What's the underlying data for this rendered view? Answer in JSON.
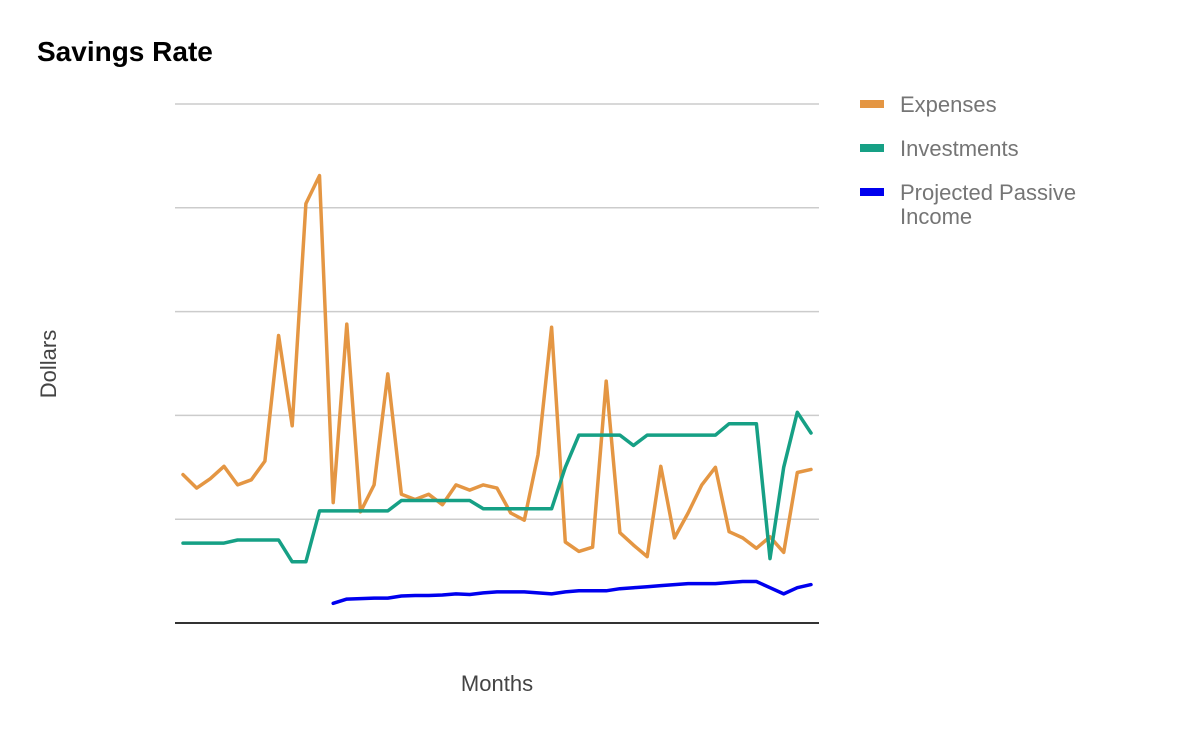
{
  "chart_data": {
    "type": "line",
    "title": "Savings Rate",
    "xlabel": "Months",
    "ylabel": "Dollars",
    "ylim": [
      0,
      5
    ],
    "grid": true,
    "legend_position": "right",
    "x": [
      0,
      1,
      2,
      3,
      4,
      5,
      6,
      7,
      8,
      9,
      10,
      11,
      12,
      13,
      14,
      15,
      16,
      17,
      18,
      19,
      20,
      21,
      22,
      23,
      24,
      25,
      26,
      27,
      28,
      29,
      30,
      31,
      32,
      33,
      34,
      35,
      36,
      37,
      38,
      39,
      40,
      41,
      42,
      43,
      44,
      45,
      46
    ],
    "series": [
      {
        "name": "Expenses",
        "color": "#e49643",
        "values": [
          1.43,
          1.3,
          1.39,
          1.51,
          1.33,
          1.38,
          1.56,
          2.77,
          1.9,
          4.04,
          4.31,
          1.16,
          2.88,
          1.07,
          1.33,
          2.4,
          1.24,
          1.19,
          1.24,
          1.14,
          1.33,
          1.28,
          1.33,
          1.3,
          1.06,
          0.99,
          1.62,
          2.85,
          0.78,
          0.69,
          0.73,
          2.33,
          0.87,
          0.75,
          0.64,
          1.51,
          0.82,
          1.06,
          1.33,
          1.5,
          0.88,
          0.82,
          0.72,
          0.83,
          0.68,
          1.45,
          1.48
        ]
      },
      {
        "name": "Investments",
        "color": "#16a085",
        "values": [
          0.77,
          0.77,
          0.77,
          0.77,
          0.8,
          0.8,
          0.8,
          0.8,
          0.59,
          0.59,
          1.08,
          1.08,
          1.08,
          1.08,
          1.08,
          1.08,
          1.18,
          1.18,
          1.18,
          1.18,
          1.18,
          1.18,
          1.1,
          1.1,
          1.1,
          1.1,
          1.1,
          1.1,
          1.5,
          1.81,
          1.81,
          1.81,
          1.81,
          1.71,
          1.81,
          1.81,
          1.81,
          1.81,
          1.81,
          1.81,
          1.92,
          1.92,
          1.92,
          0.62,
          1.5,
          2.03,
          1.83
        ]
      },
      {
        "name": "Projected Passive Income",
        "color": "#0000ee",
        "values": [
          null,
          null,
          null,
          null,
          null,
          null,
          null,
          null,
          null,
          null,
          null,
          0.19,
          0.23,
          0.235,
          0.24,
          0.24,
          0.26,
          0.265,
          0.265,
          0.27,
          0.28,
          0.275,
          0.29,
          0.3,
          0.3,
          0.3,
          0.29,
          0.28,
          0.3,
          0.31,
          0.31,
          0.31,
          0.33,
          0.34,
          0.35,
          0.36,
          0.37,
          0.38,
          0.38,
          0.38,
          0.39,
          0.4,
          0.4,
          0.34,
          0.28,
          0.34,
          0.37
        ]
      }
    ]
  }
}
